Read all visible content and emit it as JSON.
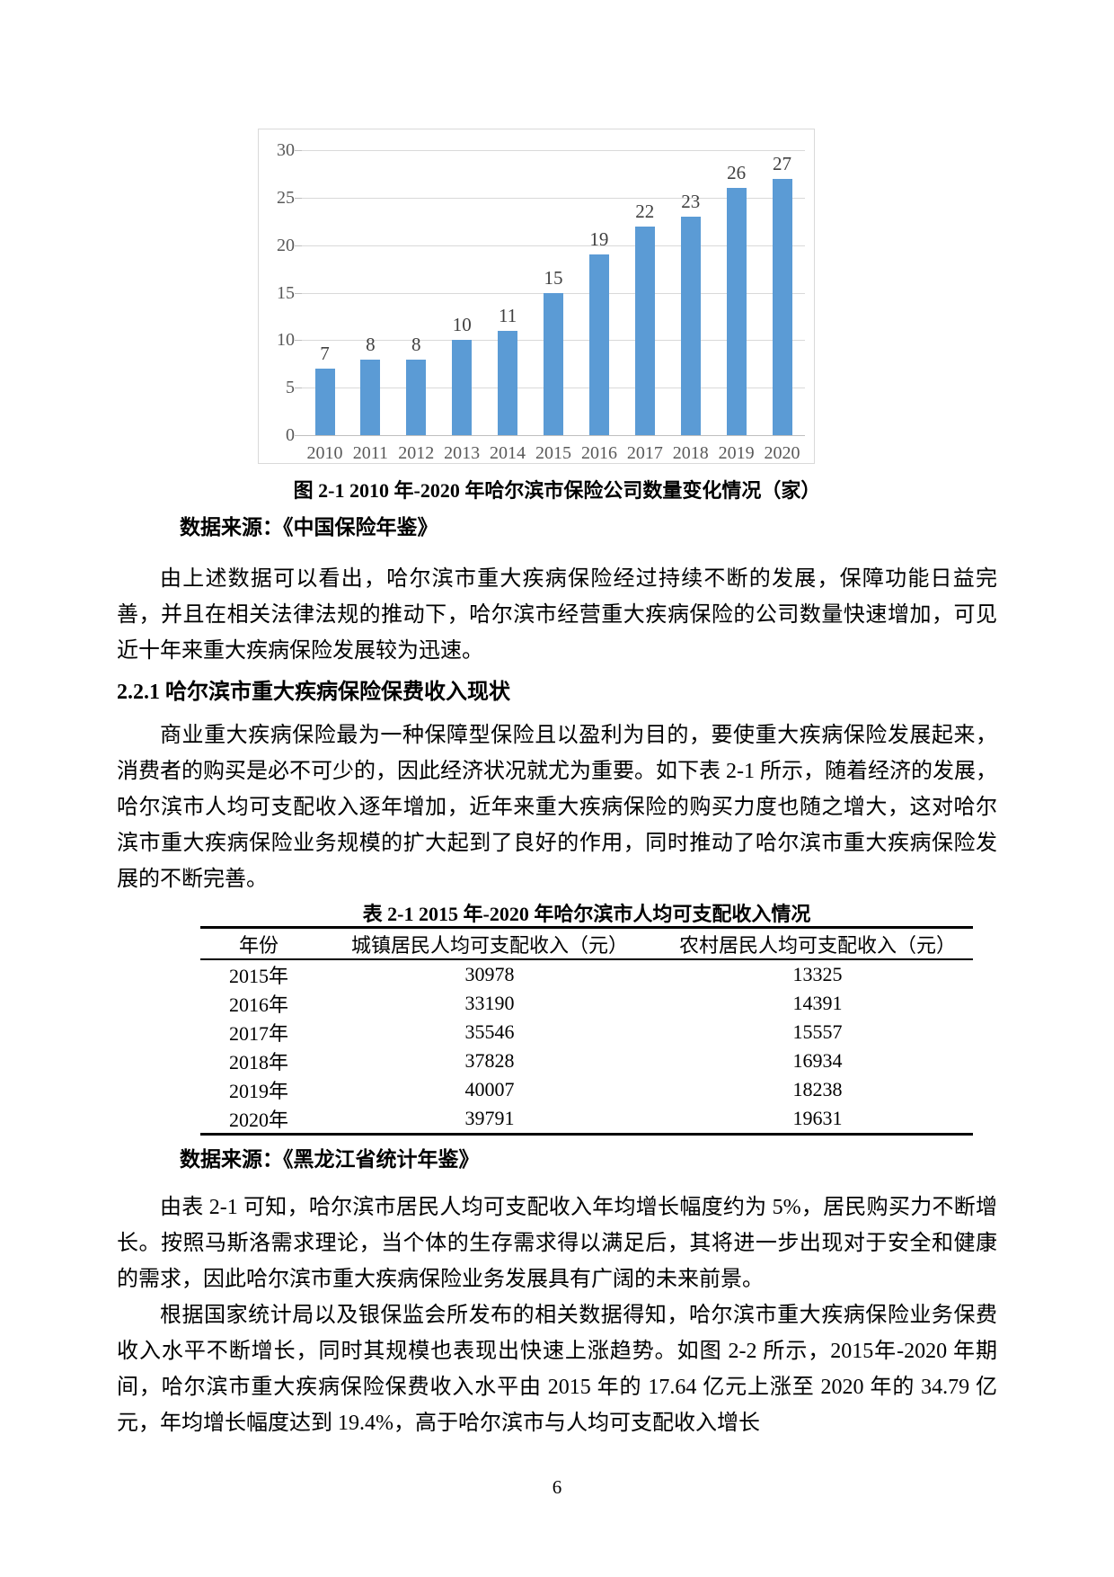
{
  "page": {
    "number": "6"
  },
  "figure": {
    "caption": "图 2-1 2010 年-2020 年哈尔滨市保险公司数量变化情况（家）",
    "source": "数据来源：《中国保险年鉴》"
  },
  "chart_data": {
    "type": "bar",
    "title": "",
    "categories": [
      "2010",
      "2011",
      "2012",
      "2013",
      "2014",
      "2015",
      "2016",
      "2017",
      "2018",
      "2019",
      "2020"
    ],
    "values": [
      7,
      8,
      8,
      10,
      11,
      15,
      19,
      22,
      23,
      26,
      27
    ],
    "xlabel": "",
    "ylabel": "",
    "ylim": [
      0,
      30
    ],
    "yticks": [
      0,
      5,
      10,
      15,
      20,
      25,
      30
    ],
    "grid": true,
    "legend": "none",
    "data_labels": true,
    "bar_color": "#5B9BD5",
    "gridline_color": "#D9D9D9",
    "axis_line_color": "#BFBFBF",
    "axis_label_color": "#595959",
    "frame_color": "#D9D9D9"
  },
  "paragraphs": {
    "p1": "由上述数据可以看出，哈尔滨市重大疾病保险经过持续不断的发展，保障功能日益完善，并且在相关法律法规的推动下，哈尔滨市经营重大疾病保险的公司数量快速增加，可见近十年来重大疾病保险发展较为迅速。",
    "p2": "商业重大疾病保险最为一种保障型保险且以盈利为目的，要使重大疾病保险发展起来， 消费者的购买是必不可少的，因此经济状况就尤为重要。如下表 2-1 所示，随着经济的发展，哈尔滨市人均可支配收入逐年增加，近年来重大疾病保险的购买力度也随之增大，这对哈尔滨市重大疾病保险业务规模的扩大起到了良好的作用，同时推动了哈尔滨市重大疾病保险发展的不断完善。",
    "p3": "由表 2-1 可知，哈尔滨市居民人均可支配收入年均增长幅度约为 5%，居民购买力不断增长。按照马斯洛需求理论，当个体的生存需求得以满足后，其将进一步出现对于安全和健康的需求，因此哈尔滨市重大疾病保险业务发展具有广阔的未来前景。",
    "p4": "根据国家统计局以及银保监会所发布的相关数据得知，哈尔滨市重大疾病保险业务保费收入水平不断增长，同时其规模也表现出快速上涨趋势。如图 2-2 所示，2015年-2020 年期间，哈尔滨市重大疾病保险保费收入水平由 2015 年的 17.64 亿元上涨至 2020 年的 34.79 亿元，年均增长幅度达到 19.4%，高于哈尔滨市与人均可支配收入增长"
  },
  "section": {
    "heading": "2.2.1 哈尔滨市重大疾病保险保费收入现状"
  },
  "table": {
    "caption": "表 2-1 2015 年-2020 年哈尔滨市人均可支配收入情况",
    "headers": [
      "年份",
      "城镇居民人均可支配收入（元）",
      "农村居民人均可支配收入（元）"
    ],
    "rows": [
      [
        "2015年",
        "30978",
        "13325"
      ],
      [
        "2016年",
        "33190",
        "14391"
      ],
      [
        "2017年",
        "35546",
        "15557"
      ],
      [
        "2018年",
        "37828",
        "16934"
      ],
      [
        "2019年",
        "40007",
        "18238"
      ],
      [
        "2020年",
        "39791",
        "19631"
      ]
    ]
  },
  "table_source": "数据来源：《黑龙江省统计年鉴》"
}
